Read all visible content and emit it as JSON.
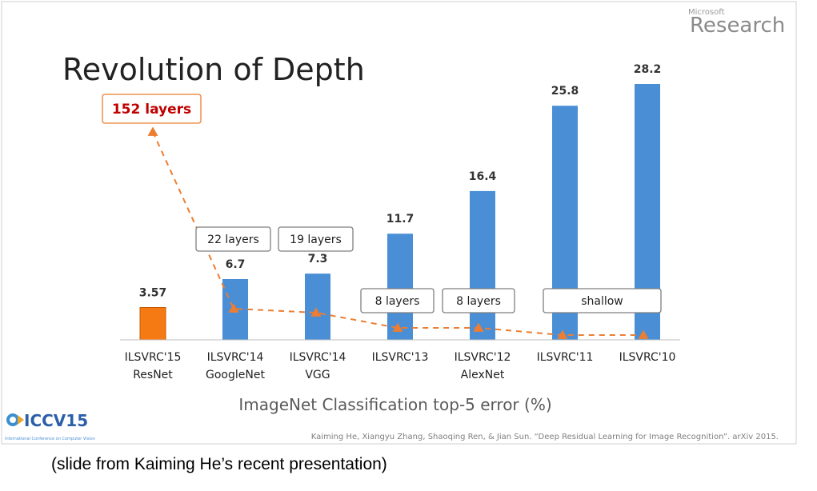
{
  "slide": {
    "title": "Revolution of Depth",
    "brand_small": "Microsoft",
    "brand_large": "Research",
    "conference_logo": "ICCV15",
    "conference_subtitle": "International Conference on Computer Vision",
    "citation": "Kaiming He, Xiangyu Zhang, Shaoqing Ren, & Jian Sun. “Deep Residual Learning for Image Recognition”. arXiv 2015."
  },
  "caption": "(slide from Kaiming He’s recent presentation)",
  "colors": {
    "bar_default": "#4a8fd6",
    "bar_highlight": "#f57a14",
    "trend": "#ed7d31",
    "highlight_text": "#c00000"
  },
  "chart_data": {
    "type": "bar",
    "categories": [
      "ILSVRC'15",
      "ILSVRC'14",
      "ILSVRC'14",
      "ILSVRC'13",
      "ILSVRC'12",
      "ILSVRC'11",
      "ILSVRC'10"
    ],
    "sublabels": [
      "ResNet",
      "GoogleNet",
      "VGG",
      "",
      "AlexNet",
      "",
      ""
    ],
    "values": [
      3.57,
      6.7,
      7.3,
      11.7,
      16.4,
      25.8,
      28.2
    ],
    "value_labels": [
      "3.57",
      "6.7",
      "7.3",
      "11.7",
      "16.4",
      "25.8",
      "28.2"
    ],
    "highlight_index": 0,
    "xlabel": "ImageNet Classification top-5 error (%)",
    "ylim": [
      0,
      30
    ],
    "grid": false,
    "layer_annotations": [
      "152 layers",
      "22 layers",
      "19 layers",
      "8 layers",
      "8 layers",
      "shallow"
    ],
    "trend_depths": [
      152,
      22,
      19,
      8,
      8,
      0,
      0
    ]
  }
}
